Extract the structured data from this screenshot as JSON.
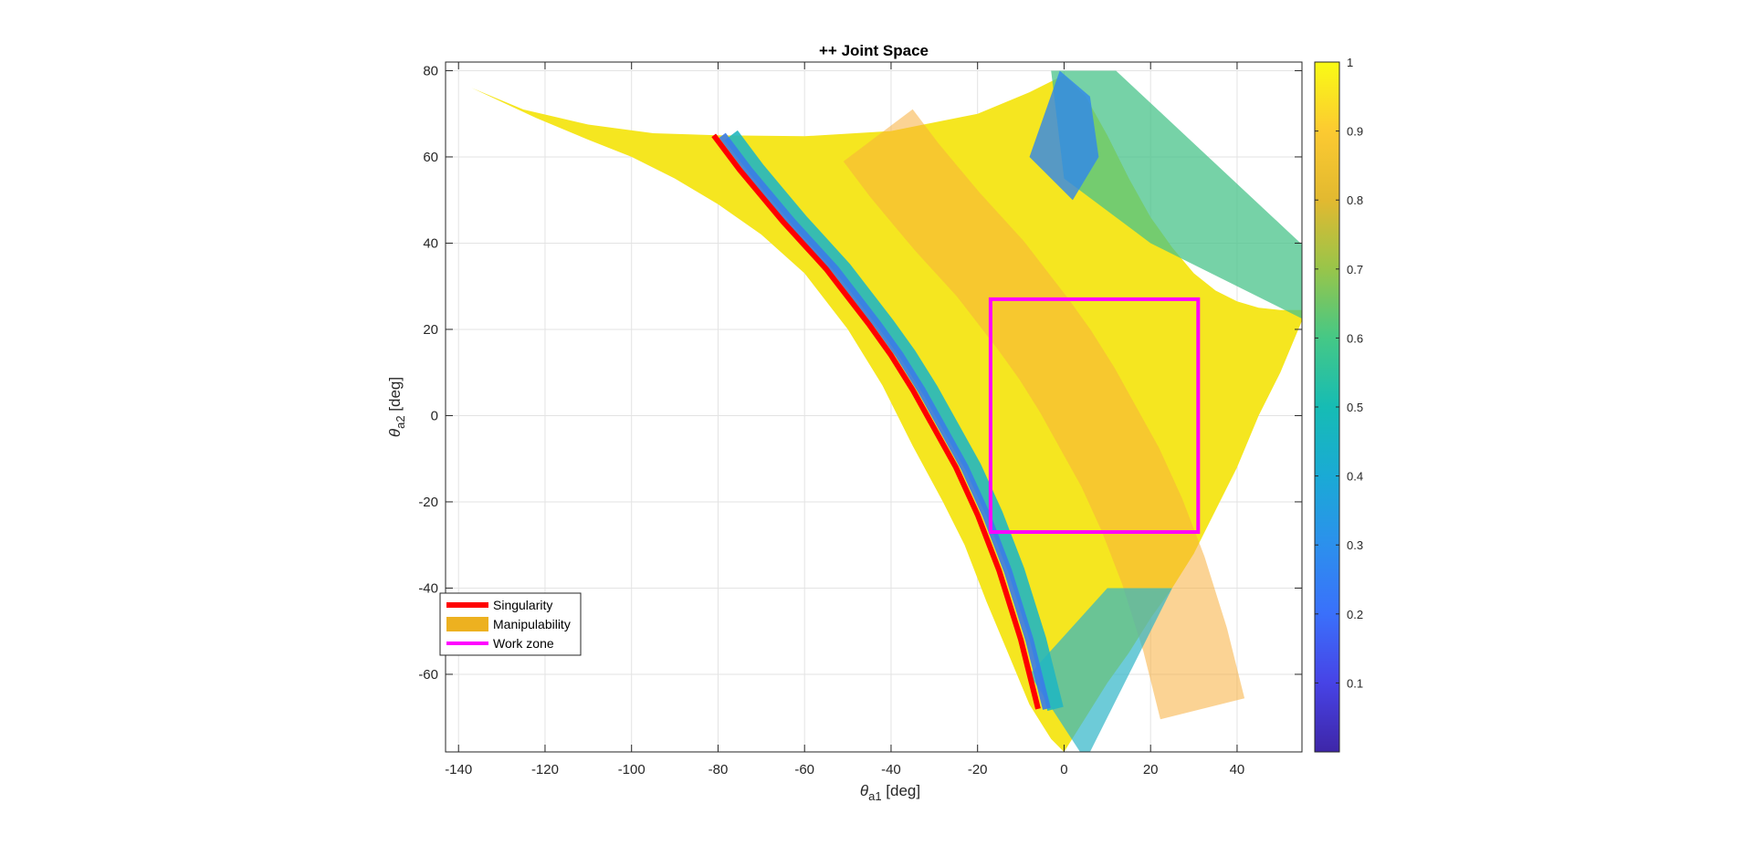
{
  "chart_data": {
    "type": "heatmap",
    "title": "++ Joint Space",
    "xlabel": {
      "symbol": "θ",
      "subscript": "a1",
      "unit": " [deg]"
    },
    "ylabel": {
      "symbol": "θ",
      "subscript": "a2",
      "unit": " [deg]"
    },
    "xlim": [
      -143,
      55
    ],
    "ylim": [
      -78,
      82
    ],
    "xticks": [
      -140,
      -120,
      -100,
      -80,
      -60,
      -40,
      -20,
      0,
      20,
      40
    ],
    "xtick_labels": [
      "-140",
      "-120",
      "-100",
      "-80",
      "-60",
      "-40",
      "-20",
      "0",
      "20",
      "40"
    ],
    "yticks": [
      -60,
      -40,
      -20,
      0,
      20,
      40,
      60,
      80
    ],
    "ytick_labels": [
      "-60",
      "-40",
      "-20",
      "0",
      "20",
      "40",
      "60",
      "80"
    ],
    "grid": true,
    "colormap": "parula",
    "colorbar": {
      "range": [
        0,
        1
      ],
      "ticks": [
        0.1,
        0.2,
        0.3,
        0.4,
        0.5,
        0.6,
        0.7,
        0.8,
        0.9,
        1
      ],
      "tick_labels": [
        "0.1",
        "0.2",
        "0.3",
        "0.4",
        "0.5",
        "0.6",
        "0.7",
        "0.8",
        "0.9",
        "1"
      ]
    },
    "region_boundary": {
      "upper": [
        [
          -137,
          76
        ],
        [
          -125,
          71
        ],
        [
          -110,
          67.5
        ],
        [
          -95,
          65.5
        ],
        [
          -80,
          65
        ],
        [
          -60,
          64.8
        ],
        [
          -40,
          66
        ],
        [
          -20,
          70
        ],
        [
          -8,
          75
        ],
        [
          0,
          79
        ],
        [
          5,
          74
        ],
        [
          10,
          65
        ],
        [
          15,
          55
        ],
        [
          20,
          46
        ],
        [
          25,
          39
        ],
        [
          30,
          33
        ],
        [
          35,
          29
        ],
        [
          40,
          26.5
        ],
        [
          45,
          25
        ],
        [
          50,
          24.5
        ],
        [
          55,
          24.5
        ]
      ],
      "lower": [
        [
          55,
          22
        ],
        [
          50,
          10
        ],
        [
          45,
          0
        ],
        [
          40,
          -12
        ],
        [
          35,
          -22
        ],
        [
          30,
          -32
        ],
        [
          25,
          -40
        ],
        [
          20,
          -47
        ],
        [
          15,
          -55
        ],
        [
          10,
          -62
        ],
        [
          5,
          -70
        ],
        [
          0,
          -78
        ],
        [
          -3,
          -75
        ],
        [
          -8,
          -67
        ],
        [
          -13,
          -55
        ],
        [
          -18,
          -43
        ],
        [
          -23,
          -30
        ],
        [
          -28,
          -20
        ],
        [
          -35,
          -7
        ],
        [
          -42,
          7
        ],
        [
          -50,
          20
        ],
        [
          -60,
          33
        ],
        [
          -70,
          42
        ],
        [
          -80,
          49
        ],
        [
          -90,
          55
        ],
        [
          -100,
          60
        ],
        [
          -110,
          64
        ],
        [
          -122,
          69
        ],
        [
          -137,
          76
        ]
      ]
    },
    "series": [
      {
        "name": "Singularity",
        "color": "#ff0000",
        "x": [
          -81,
          -75,
          -70,
          -65,
          -60,
          -55,
          -50,
          -45,
          -40,
          -35,
          -30,
          -25,
          -20,
          -15,
          -10,
          -6
        ],
        "y": [
          65,
          57,
          51,
          45,
          39.5,
          34,
          27.5,
          21,
          14,
          6,
          -3,
          -12,
          -23,
          -36,
          -52,
          -68
        ]
      },
      {
        "name": "Manipulability",
        "color": "#edb120"
      },
      {
        "name": "Work zone",
        "color": "#ff00ff",
        "rect": {
          "x": [
            -17,
            31
          ],
          "y": [
            -27,
            27
          ]
        }
      }
    ],
    "legend": {
      "position": "bottom-left",
      "entries": [
        "Singularity",
        "Manipulability",
        "Work zone"
      ]
    }
  }
}
